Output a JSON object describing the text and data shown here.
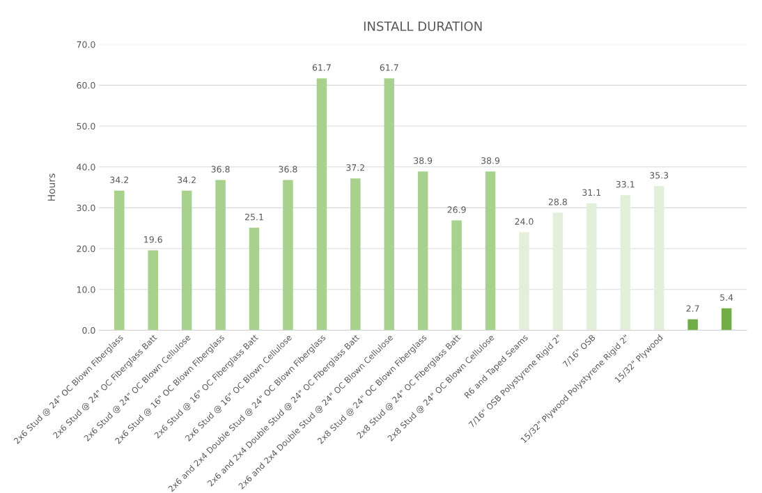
{
  "chart_data": {
    "type": "bar",
    "title": "INSTALL DURATION",
    "ylabel": "Hours",
    "categories": [
      "2x6 Stud @ 24\" OC Blown Fiberglass",
      "2x6 Stud @ 24\" OC Fiberglass Batt",
      "2x6 Stud @ 24\" OC Blown Cellulose",
      "2x6 Stud @ 16\" OC Blown Fiberglass",
      "2x6 Stud @ 16\" OC Fiberglass Batt",
      "2x6 Stud @ 16\" OC Blown Cellulose",
      "2x6 and 2x4 Double Stud @ 24\" OC Blown Fiberglass",
      "2x6 and 2x4 Double Stud @ 24\" OC Fiberglass Batt",
      "2x6 and 2x4 Double Stud @ 24\" OC Blown Cellulose",
      "2x8 Stud @ 24\" OC Blown Fiberglass",
      "2x8 Stud @ 24\" OC Fiberglass Batt",
      "2x8 Stud @ 24\" OC Blown Cellulose",
      "R6 and Taped Seams",
      "7/16\" OSB Polystyrene Rigid 2\"",
      "7/16\" OSB",
      "15/32\" Plywood Polystyrene Rigid 2\"",
      "15/32\" Plywood",
      null,
      null
    ],
    "values": [
      34.2,
      19.6,
      34.2,
      36.8,
      25.1,
      36.8,
      61.7,
      37.2,
      61.7,
      38.9,
      26.9,
      38.9,
      24.0,
      28.8,
      31.1,
      33.1,
      35.3,
      2.7,
      5.4
    ],
    "value_labels": [
      "34.2",
      "19.6",
      "34.2",
      "36.8",
      "25.1",
      "36.8",
      "61.7",
      "37.2",
      "61.7",
      "38.9",
      "26.9",
      "38.9",
      "24.0",
      "28.8",
      "31.1",
      "33.1",
      "35.3",
      "2.7",
      "5.4"
    ],
    "colors": [
      "#a9d18e",
      "#a9d18e",
      "#a9d18e",
      "#a9d18e",
      "#a9d18e",
      "#a9d18e",
      "#a9d18e",
      "#a9d18e",
      "#a9d18e",
      "#a9d18e",
      "#a9d18e",
      "#a9d18e",
      "#e2efda",
      "#e2efda",
      "#e2efda",
      "#e2efda",
      "#e2efda",
      "#70ad47",
      "#70ad47"
    ],
    "ylim": [
      0,
      70
    ],
    "yticks": [
      {
        "value": 0,
        "label": "0.0"
      },
      {
        "value": 10,
        "label": "10.0"
      },
      {
        "value": 20,
        "label": "20.0"
      },
      {
        "value": 30,
        "label": "30.0"
      },
      {
        "value": 40,
        "label": "40.0"
      },
      {
        "value": 50,
        "label": "50.0"
      },
      {
        "value": 60,
        "label": "60.0"
      },
      {
        "value": 70,
        "label": "70.0"
      }
    ],
    "grid": "y"
  }
}
